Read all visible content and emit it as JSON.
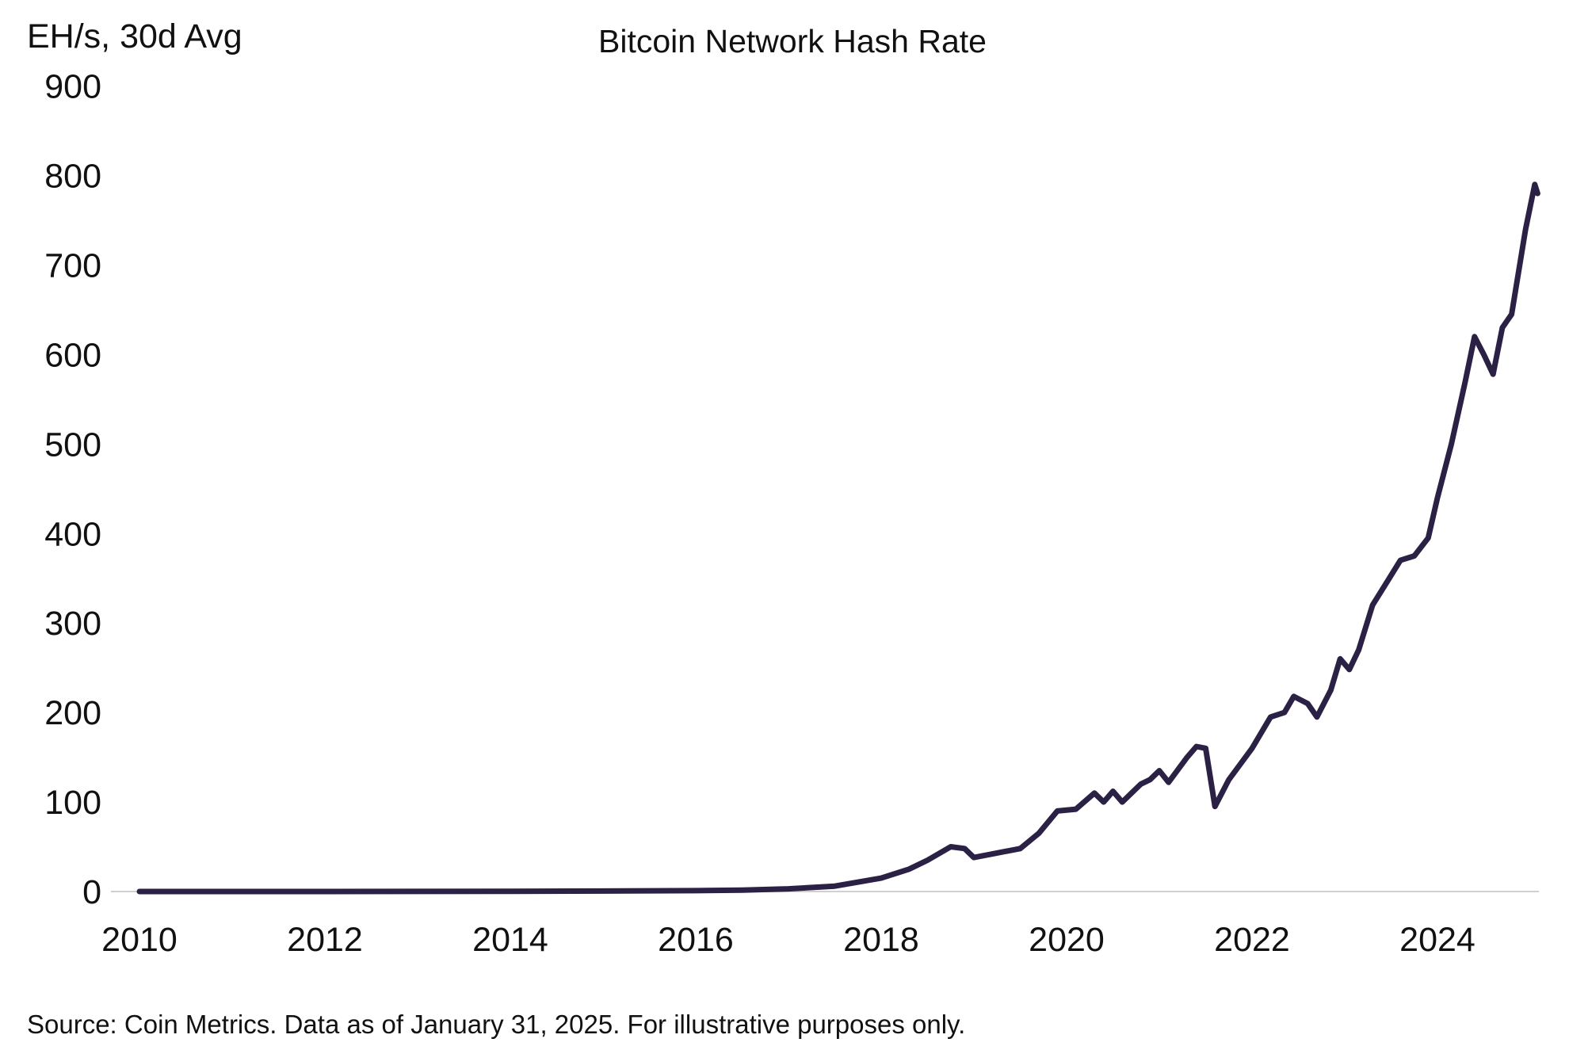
{
  "chart_data": {
    "type": "line",
    "title": "Bitcoin Network Hash Rate",
    "ylabel": "EH/s, 30d Avg",
    "xlabel": "",
    "xlim": [
      2010,
      2025.1
    ],
    "ylim": [
      0,
      900
    ],
    "grid": false,
    "x_ticks": [
      "2010",
      "2012",
      "2014",
      "2016",
      "2018",
      "2020",
      "2022",
      "2024"
    ],
    "y_ticks": [
      "0",
      "100",
      "200",
      "300",
      "400",
      "500",
      "600",
      "700",
      "800",
      "900"
    ],
    "line_color": "#2a2145",
    "series": [
      {
        "x": [
          2010.0,
          2012.0,
          2014.0,
          2016.0,
          2016.5,
          2017.0,
          2017.5,
          2018.0,
          2018.3,
          2018.5,
          2018.75,
          2018.9,
          2019.0,
          2019.2,
          2019.5,
          2019.7,
          2019.9,
          2020.1,
          2020.3,
          2020.4,
          2020.5,
          2020.6,
          2020.8,
          2020.9,
          2021.0,
          2021.1,
          2021.3,
          2021.4,
          2021.5,
          2021.6,
          2021.75,
          2022.0,
          2022.2,
          2022.35,
          2022.45,
          2022.6,
          2022.7,
          2022.85,
          2022.95,
          2023.05,
          2023.15,
          2023.3,
          2023.45,
          2023.6,
          2023.75,
          2023.9,
          2024.0,
          2024.15,
          2024.3,
          2024.4,
          2024.5,
          2024.6,
          2024.7,
          2024.8,
          2024.95,
          2025.05,
          2025.08
        ],
        "y": [
          0,
          0,
          0.2,
          1,
          1.5,
          3,
          6,
          15,
          25,
          35,
          50,
          48,
          38,
          42,
          48,
          65,
          90,
          92,
          110,
          100,
          112,
          100,
          120,
          125,
          135,
          122,
          150,
          162,
          160,
          95,
          125,
          160,
          195,
          200,
          218,
          210,
          195,
          225,
          260,
          248,
          270,
          320,
          345,
          370,
          375,
          395,
          440,
          500,
          570,
          620,
          600,
          578,
          630,
          645,
          740,
          790,
          780
        ]
      }
    ]
  },
  "footer": {
    "source": "Source: Coin Metrics. Data as of January 31, 2025. For illustrative purposes only."
  }
}
